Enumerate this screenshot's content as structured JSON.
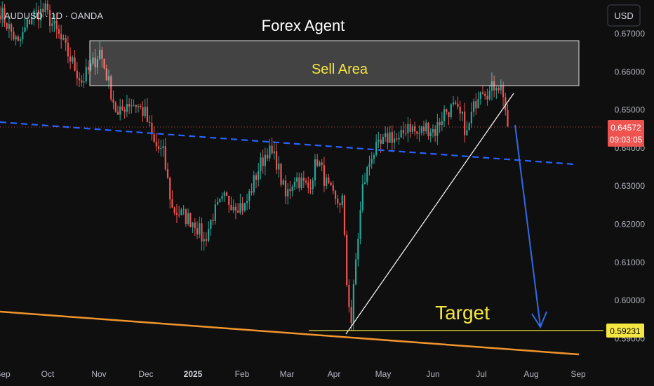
{
  "header": {
    "symbol": "AUDUSD",
    "interval": "1D",
    "source": "OANDA",
    "separator": " · "
  },
  "currency_button": {
    "label": "USD"
  },
  "annotations": {
    "title": "Forex Agent",
    "sell_zone": {
      "label": "Sell Area",
      "low": 0.6567,
      "high": 0.6682
    },
    "target": {
      "label": "Target",
      "price": 0.59231
    }
  },
  "price_labels": {
    "current_price": "0.64572",
    "countdown": "09:03:05",
    "target_price": "0.59231"
  },
  "colors": {
    "background": "#0f0f0f",
    "up_candle": "#26a69a",
    "down_candle": "#ef5350",
    "trend_dashed": "#2962ff",
    "arrow": "#2f6be8",
    "support_line": "#f2952c",
    "target_line": "#f5e642",
    "uptrend_line": "#ffffff",
    "axis_text": "#b2b5be"
  },
  "chart_data": {
    "type": "candlestick",
    "instrument": "AUDUSD",
    "timeframe": "1D",
    "ylim": [
      0.5855,
      0.6755
    ],
    "y_ticks": [
      "0.67000",
      "0.66000",
      "0.65000",
      "0.64000",
      "0.63000",
      "0.62000",
      "0.61000",
      "0.60000",
      "0.59000"
    ],
    "x_ticks": [
      "Sep",
      "Oct",
      "Nov",
      "Dec",
      "2025",
      "Feb",
      "Mar",
      "Apr",
      "May",
      "Jun",
      "Jul",
      "Aug",
      "Sep"
    ],
    "anchors": [
      {
        "t": 0,
        "p": 0.676
      },
      {
        "t": 8,
        "p": 0.667
      },
      {
        "t": 14,
        "p": 0.675
      },
      {
        "t": 20,
        "p": 0.676
      },
      {
        "t": 28,
        "p": 0.667
      },
      {
        "t": 36,
        "p": 0.6575
      },
      {
        "t": 41,
        "p": 0.662
      },
      {
        "t": 44,
        "p": 0.6655
      },
      {
        "t": 48,
        "p": 0.657
      },
      {
        "t": 52,
        "p": 0.648
      },
      {
        "t": 56,
        "p": 0.652
      },
      {
        "t": 60,
        "p": 0.6515
      },
      {
        "t": 64,
        "p": 0.649
      },
      {
        "t": 68,
        "p": 0.641
      },
      {
        "t": 72,
        "p": 0.6385
      },
      {
        "t": 76,
        "p": 0.624
      },
      {
        "t": 80,
        "p": 0.6225
      },
      {
        "t": 86,
        "p": 0.6205
      },
      {
        "t": 90,
        "p": 0.6155
      },
      {
        "t": 94,
        "p": 0.6225
      },
      {
        "t": 99,
        "p": 0.6265
      },
      {
        "t": 104,
        "p": 0.6255
      },
      {
        "t": 108,
        "p": 0.6245
      },
      {
        "t": 114,
        "p": 0.6345
      },
      {
        "t": 118,
        "p": 0.6395
      },
      {
        "t": 122,
        "p": 0.6365
      },
      {
        "t": 126,
        "p": 0.627
      },
      {
        "t": 130,
        "p": 0.6325
      },
      {
        "t": 136,
        "p": 0.6295
      },
      {
        "t": 140,
        "p": 0.637
      },
      {
        "t": 144,
        "p": 0.6305
      },
      {
        "t": 148,
        "p": 0.6255
      },
      {
        "t": 151,
        "p": 0.6265
      },
      {
        "t": 153,
        "p": 0.6045
      },
      {
        "t": 155,
        "p": 0.5945
      },
      {
        "t": 157,
        "p": 0.6105
      },
      {
        "t": 160,
        "p": 0.6295
      },
      {
        "t": 164,
        "p": 0.6385
      },
      {
        "t": 168,
        "p": 0.6405
      },
      {
        "t": 172,
        "p": 0.6435
      },
      {
        "t": 176,
        "p": 0.6415
      },
      {
        "t": 180,
        "p": 0.6465
      },
      {
        "t": 184,
        "p": 0.6435
      },
      {
        "t": 188,
        "p": 0.6455
      },
      {
        "t": 192,
        "p": 0.6445
      },
      {
        "t": 196,
        "p": 0.6495
      },
      {
        "t": 200,
        "p": 0.6505
      },
      {
        "t": 204,
        "p": 0.6475
      },
      {
        "t": 206,
        "p": 0.6435
      },
      {
        "t": 208,
        "p": 0.6485
      },
      {
        "t": 212,
        "p": 0.6565
      },
      {
        "t": 216,
        "p": 0.6545
      },
      {
        "t": 219,
        "p": 0.6575
      },
      {
        "t": 222,
        "p": 0.6545
      },
      {
        "t": 224,
        "p": 0.6457
      }
    ]
  }
}
